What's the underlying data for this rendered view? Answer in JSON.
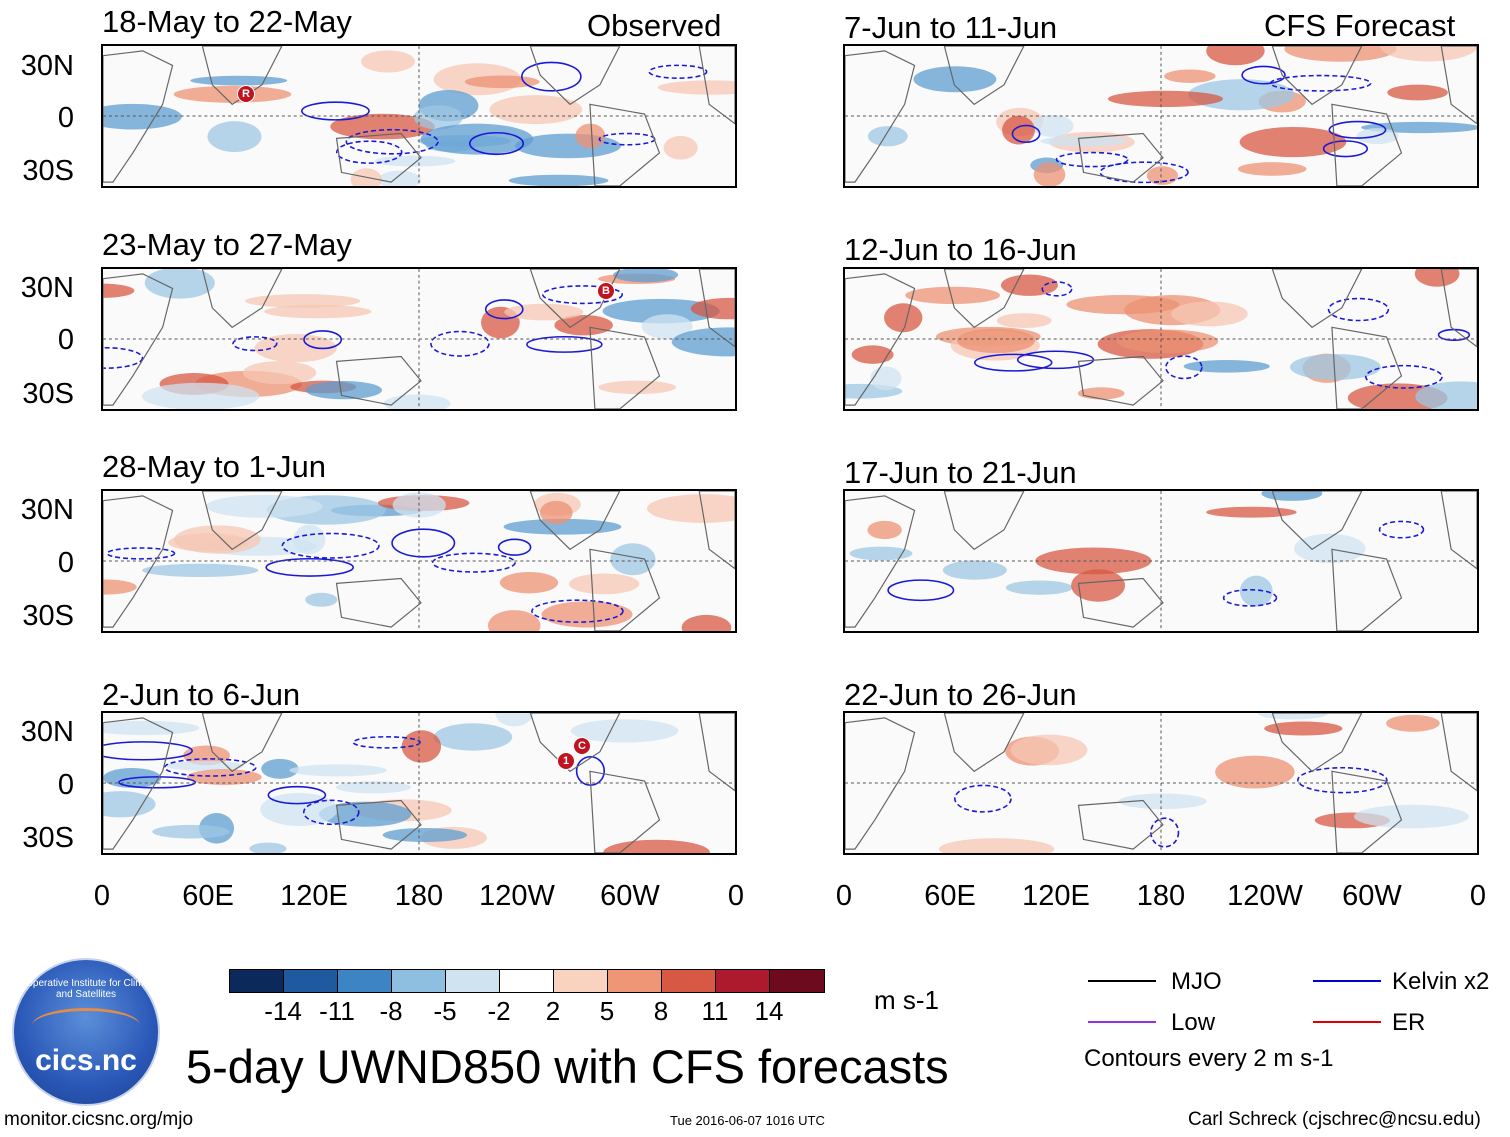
{
  "header": {
    "observed_label": "Observed",
    "forecast_label": "CFS Forecast"
  },
  "panels": [
    {
      "title": "18-May to 22-May",
      "column": "observed"
    },
    {
      "title": "23-May to 27-May",
      "column": "observed"
    },
    {
      "title": "28-May to 1-Jun",
      "column": "observed"
    },
    {
      "title": "2-Jun to 6-Jun",
      "column": "observed"
    },
    {
      "title": "7-Jun to 11-Jun",
      "column": "forecast"
    },
    {
      "title": "12-Jun to 16-Jun",
      "column": "forecast"
    },
    {
      "title": "17-Jun to 21-Jun",
      "column": "forecast"
    },
    {
      "title": "22-Jun to 26-Jun",
      "column": "forecast"
    }
  ],
  "lat_labels": [
    "30N",
    "0",
    "30S"
  ],
  "lon_labels": [
    "0",
    "60E",
    "120E",
    "180",
    "120W",
    "60W",
    "0"
  ],
  "markers": [
    {
      "label": "R"
    },
    {
      "label": "B"
    },
    {
      "label": "C"
    },
    {
      "label": "1"
    }
  ],
  "colorbar": {
    "ticks": [
      "-14",
      "-11",
      "-8",
      "-5",
      "-2",
      "2",
      "5",
      "8",
      "11",
      "14"
    ],
    "units": "m s-1",
    "colors": [
      "#0b2a5b",
      "#1f5aa0",
      "#3d84c4",
      "#8fbfe0",
      "#cfe3f1",
      "#ffffff",
      "#f9d3c0",
      "#ef9677",
      "#d75843",
      "#ad1a2d",
      "#6e0a1e"
    ]
  },
  "legend": {
    "items": [
      {
        "label": "MJO",
        "color": "#000000"
      },
      {
        "label": "Low",
        "color": "#9b30d9"
      },
      {
        "label": "Kelvin x2",
        "color": "#0000d0"
      },
      {
        "label": "ER",
        "color": "#e00000"
      }
    ],
    "note": "Contours every 2 m s-1"
  },
  "main_title": "5-day UWND850 with CFS forecasts",
  "footer": {
    "url": "monitor.cicsnc.org/mjo",
    "timestamp": "Tue 2016-06-07 1016 UTC",
    "author": "Carl Schreck (cjschrec@ncsu.edu)"
  },
  "logo": {
    "text": "cics.nc",
    "arc_text": "Cooperative Institute for Climate and Satellites"
  }
}
